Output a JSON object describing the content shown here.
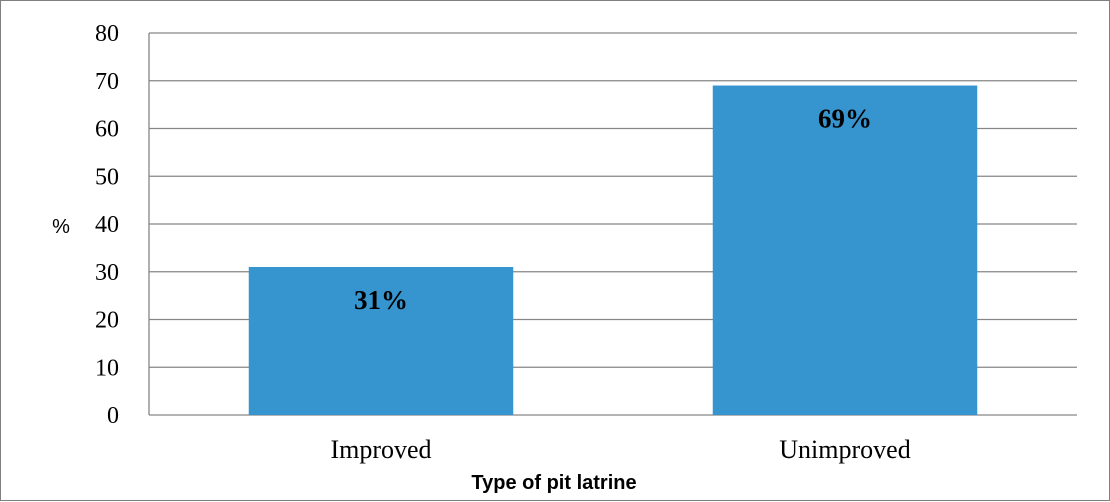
{
  "chart_data": {
    "type": "bar",
    "categories": [
      "Improved",
      "Unimproved"
    ],
    "values": [
      31,
      69
    ],
    "data_labels": [
      "31%",
      "69%"
    ],
    "xlabel": "Type of pit latrine",
    "ylabel": "%",
    "ylim": [
      0,
      80
    ],
    "yticks": [
      0,
      10,
      20,
      30,
      40,
      50,
      60,
      70,
      80
    ],
    "grid": true,
    "bar_color": "#3694cf",
    "grid_color": "#868686"
  }
}
